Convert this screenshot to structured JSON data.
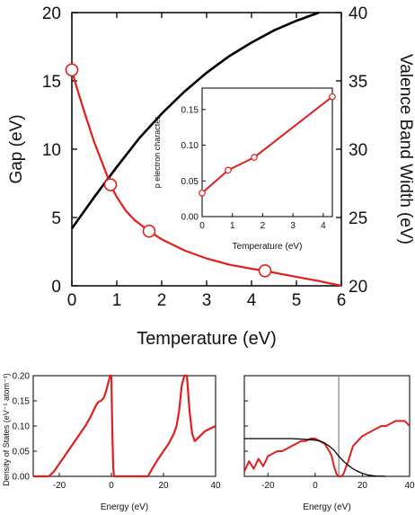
{
  "chart_data": [
    {
      "type": "line",
      "xlabel": "Temperature (eV)",
      "ylabel": "Gap (eV)",
      "y2label": "Valence Band Width (eV)",
      "xlim": [
        0,
        6
      ],
      "ylim": [
        0,
        20
      ],
      "y2lim": [
        20,
        40
      ],
      "xticks": [
        0,
        1,
        2,
        3,
        4,
        5,
        6
      ],
      "yticks": [
        0,
        5,
        10,
        15,
        20
      ],
      "y2ticks": [
        20,
        25,
        30,
        35,
        40
      ],
      "colors": {
        "gap": "#e0201b",
        "bandwidth": "#000000"
      },
      "series": [
        {
          "axis": "left",
          "marker": "open-circle",
          "color": "#e0201b",
          "x": [
            0,
            0.1,
            0.3,
            0.5,
            0.7,
            0.86,
            1.0,
            1.2,
            1.4,
            1.6,
            1.72,
            2.0,
            2.5,
            3.0,
            3.5,
            4.0,
            4.3,
            4.6,
            5.0,
            5.5,
            6.0
          ],
          "values": [
            15.8,
            14.6,
            12.5,
            10.5,
            8.8,
            7.4,
            6.5,
            5.5,
            4.8,
            4.3,
            4.0,
            3.4,
            2.6,
            2.0,
            1.55,
            1.25,
            1.1,
            0.9,
            0.65,
            0.35,
            0.0
          ],
          "markers": [
            [
              0,
              15.8
            ],
            [
              0.86,
              7.4
            ],
            [
              1.72,
              4.0
            ],
            [
              4.3,
              1.1
            ]
          ]
        },
        {
          "axis": "right",
          "color": "#000000",
          "x": [
            0,
            0.5,
            1.0,
            1.5,
            2.0,
            2.5,
            3.0,
            3.5,
            4.0,
            4.5,
            5.0,
            5.5
          ],
          "values": [
            24.2,
            26.5,
            28.7,
            30.8,
            32.6,
            34.2,
            35.6,
            36.8,
            37.8,
            38.7,
            39.4,
            40.0
          ]
        }
      ]
    },
    {
      "type": "line",
      "xlabel": "Temperature (eV)",
      "ylabel": "p electron character",
      "xlim": [
        0,
        4.3
      ],
      "ylim": [
        0,
        0.18
      ],
      "xticks": [
        0,
        1,
        2,
        3,
        4
      ],
      "yticks": [
        0.0,
        0.05,
        0.1,
        0.15
      ],
      "ytick_labels": [
        "0.00",
        "0.05",
        "0.10",
        "0.15"
      ],
      "series": [
        {
          "color": "#e0201b",
          "marker": "open-circle",
          "x": [
            0,
            0.86,
            1.72,
            4.3
          ],
          "values": [
            0.033,
            0.065,
            0.083,
            0.168
          ]
        }
      ]
    },
    {
      "type": "line",
      "xlabel": "Energy (eV)",
      "ylabel": "Density of States (eV⁻¹ atom⁻¹)",
      "xlim": [
        -30,
        40
      ],
      "ylim": [
        0,
        0.2
      ],
      "xticks": [
        -20,
        0,
        20,
        40
      ],
      "yticks": [
        0.0,
        0.05,
        0.1,
        0.15,
        0.2
      ],
      "ytick_labels": [
        "0.00",
        "0.05",
        "0.10",
        "0.15",
        "0.20"
      ],
      "series": [
        {
          "color": "#e0201b",
          "x": [
            -30,
            -24,
            -22,
            -20,
            -18,
            -16,
            -14,
            -12,
            -10,
            -8,
            -6,
            -5,
            -4,
            -3,
            -2,
            -1,
            -0.5,
            0,
            0.3,
            0.7,
            1,
            2,
            14,
            16,
            18,
            20,
            22,
            24,
            25,
            26,
            27,
            28,
            29,
            30,
            31,
            32,
            34,
            36,
            38,
            40
          ],
          "values": [
            0,
            0,
            0.01,
            0.025,
            0.04,
            0.055,
            0.07,
            0.085,
            0.1,
            0.118,
            0.14,
            0.148,
            0.15,
            0.155,
            0.17,
            0.19,
            0.2,
            0.2,
            0.1,
            0.02,
            0,
            0,
            0,
            0.018,
            0.035,
            0.05,
            0.065,
            0.085,
            0.1,
            0.13,
            0.18,
            0.2,
            0.2,
            0.13,
            0.085,
            0.07,
            0.08,
            0.09,
            0.095,
            0.1
          ]
        }
      ]
    },
    {
      "type": "line",
      "xlabel": "Energy (eV)",
      "xlim": [
        -30,
        40
      ],
      "ylim": [
        0,
        0.2
      ],
      "xticks": [
        -20,
        0,
        20,
        40
      ],
      "vline_x": 10,
      "series": [
        {
          "color": "#e0201b",
          "x": [
            -30,
            -28,
            -26,
            -24,
            -22,
            -20,
            -18,
            -16,
            -14,
            -12,
            -10,
            -8,
            -6,
            -4,
            -2,
            0,
            2,
            4,
            6,
            7,
            8,
            9,
            10,
            11,
            12,
            14,
            16,
            18,
            20,
            22,
            24,
            26,
            28,
            30,
            32,
            34,
            36,
            38,
            40
          ],
          "values": [
            0.01,
            0.03,
            0.015,
            0.035,
            0.02,
            0.04,
            0.045,
            0.05,
            0.05,
            0.055,
            0.06,
            0.065,
            0.07,
            0.07,
            0.075,
            0.075,
            0.07,
            0.065,
            0.05,
            0.04,
            0.02,
            0.005,
            0,
            0,
            0.005,
            0.03,
            0.06,
            0.07,
            0.08,
            0.085,
            0.09,
            0.095,
            0.1,
            0.1,
            0.105,
            0.11,
            0.11,
            0.11,
            0.1
          ]
        },
        {
          "color": "#000000",
          "x": [
            -30,
            -20,
            -10,
            -5,
            0,
            2,
            4,
            6,
            8,
            10,
            12,
            14,
            16,
            18,
            20,
            22,
            24,
            26,
            28,
            30
          ],
          "values": [
            0.075,
            0.075,
            0.075,
            0.074,
            0.072,
            0.07,
            0.066,
            0.06,
            0.052,
            0.04,
            0.03,
            0.022,
            0.015,
            0.01,
            0.006,
            0.003,
            0.0015,
            0.0008,
            0.0003,
            0
          ]
        }
      ]
    }
  ]
}
